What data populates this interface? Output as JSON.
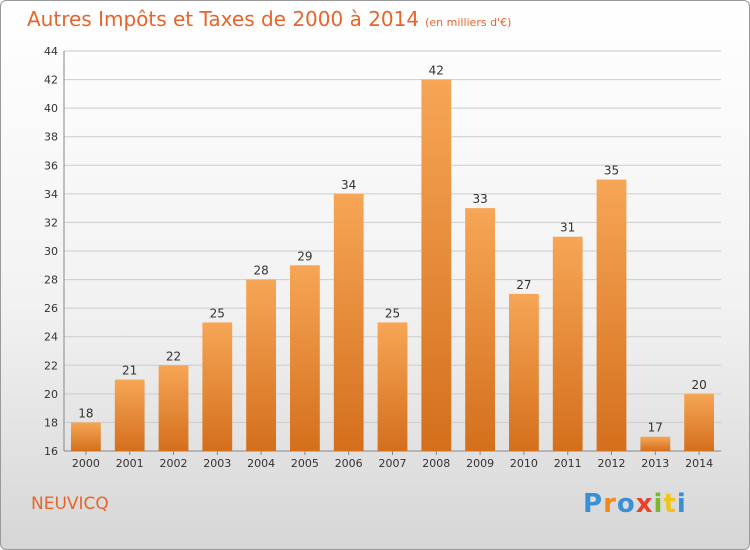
{
  "chart_data": {
    "type": "bar",
    "title": "Autres Impôts et Taxes de 2000 à 2014",
    "subtitle": "(en milliers d'€)",
    "categories": [
      "2000",
      "2001",
      "2002",
      "2003",
      "2004",
      "2005",
      "2006",
      "2007",
      "2008",
      "2009",
      "2010",
      "2011",
      "2012",
      "2013",
      "2014"
    ],
    "values": [
      18,
      21,
      22,
      25,
      28,
      29,
      34,
      25,
      42,
      33,
      27,
      31,
      35,
      17,
      20
    ],
    "ylim": [
      16,
      44
    ],
    "yticks": [
      16,
      18,
      20,
      22,
      24,
      26,
      28,
      30,
      32,
      34,
      36,
      38,
      40,
      42,
      44
    ],
    "grid": true,
    "colors": {
      "bar_light": "#f6a656",
      "bar_dark": "#d46f1c",
      "title": "#e8642a"
    }
  },
  "city": "NEUVICQ",
  "logo": {
    "letters": [
      "P",
      "r",
      "o",
      "x",
      "i",
      "t",
      "i"
    ],
    "colors": [
      "#3a8fd6",
      "#f08a1c",
      "#3a8fd6",
      "#e8422a",
      "#7cb82f",
      "#f0c419",
      "#3a8fd6"
    ]
  }
}
